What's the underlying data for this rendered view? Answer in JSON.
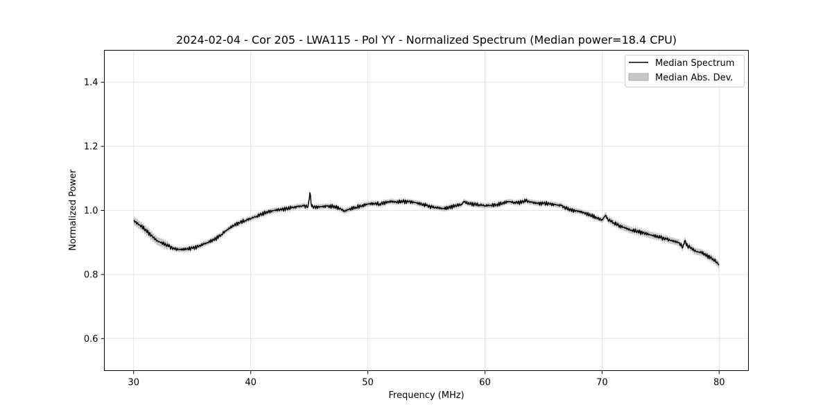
{
  "chart_data": {
    "type": "line",
    "title": "2024-02-04 - Cor 205 - LWA115 - Pol YY - Normalized Spectrum (Median power=18.4 CPU)",
    "xlabel": "Frequency (MHz)",
    "ylabel": "Normalized Power",
    "xlim": [
      27.5,
      82.5
    ],
    "ylim": [
      0.5,
      1.5
    ],
    "xticks": [
      30,
      40,
      50,
      60,
      70,
      80
    ],
    "xtick_labels": [
      "30",
      "40",
      "50",
      "60",
      "70",
      "80"
    ],
    "yticks": [
      0.6,
      0.8,
      1.0,
      1.2,
      1.4
    ],
    "ytick_labels": [
      "0.6",
      "0.8",
      "1.0",
      "1.2",
      "1.4"
    ],
    "grid": true,
    "legend_position": "top-right",
    "legend": [
      {
        "label": "Median Spectrum",
        "kind": "line",
        "color": "#000000"
      },
      {
        "label": "Median Abs. Dev.",
        "kind": "band",
        "color": "#b0b0b0"
      }
    ],
    "series": [
      {
        "name": "Median Spectrum",
        "x": [
          30,
          30.5,
          31,
          31.5,
          32,
          32.5,
          33,
          33.5,
          34,
          34.5,
          35,
          35.5,
          36,
          36.5,
          37,
          37.5,
          38,
          38.5,
          39,
          39.5,
          40,
          40.5,
          41,
          41.5,
          42,
          42.5,
          43,
          43.5,
          44,
          44.5,
          44.9,
          45.05,
          45.2,
          45.5,
          46,
          46.5,
          47,
          47.5,
          48,
          48.5,
          49,
          49.5,
          50,
          50.5,
          51,
          51.5,
          52,
          52.5,
          53,
          53.5,
          54,
          54.5,
          55,
          55.5,
          56,
          56.5,
          57,
          57.5,
          58,
          58.2,
          58.5,
          59,
          59.5,
          60,
          60.5,
          61,
          61.5,
          62,
          62.5,
          63,
          63.5,
          64,
          64.5,
          65,
          65.5,
          66,
          66.5,
          67,
          67.5,
          68,
          68.5,
          69,
          69.5,
          70,
          70.3,
          70.5,
          71,
          71.5,
          72,
          72.5,
          73,
          73.5,
          74,
          74.5,
          75,
          75.5,
          76,
          76.5,
          76.9,
          77.05,
          77.3,
          77.5,
          78,
          78.5,
          79,
          79.5,
          80
        ],
        "values": [
          0.968,
          0.955,
          0.94,
          0.922,
          0.905,
          0.897,
          0.888,
          0.879,
          0.878,
          0.879,
          0.882,
          0.887,
          0.895,
          0.902,
          0.912,
          0.925,
          0.94,
          0.952,
          0.962,
          0.968,
          0.975,
          0.982,
          0.99,
          0.995,
          1.0,
          1.003,
          1.005,
          1.008,
          1.012,
          1.014,
          1.012,
          1.055,
          1.012,
          1.01,
          1.012,
          1.013,
          1.012,
          1.008,
          0.998,
          1.005,
          1.01,
          1.015,
          1.02,
          1.022,
          1.02,
          1.025,
          1.028,
          1.026,
          1.028,
          1.027,
          1.025,
          1.02,
          1.015,
          1.01,
          1.008,
          1.005,
          1.01,
          1.015,
          1.018,
          1.028,
          1.022,
          1.02,
          1.018,
          1.015,
          1.016,
          1.018,
          1.022,
          1.028,
          1.025,
          1.025,
          1.03,
          1.025,
          1.022,
          1.022,
          1.02,
          1.018,
          1.015,
          1.005,
          1.0,
          0.998,
          0.992,
          0.985,
          0.978,
          0.97,
          0.985,
          0.972,
          0.962,
          0.952,
          0.945,
          0.938,
          0.935,
          0.93,
          0.925,
          0.92,
          0.915,
          0.91,
          0.905,
          0.9,
          0.886,
          0.905,
          0.89,
          0.885,
          0.872,
          0.868,
          0.858,
          0.848,
          0.83
        ]
      },
      {
        "name": "Median Abs. Dev.",
        "half_width": 0.008
      }
    ]
  }
}
